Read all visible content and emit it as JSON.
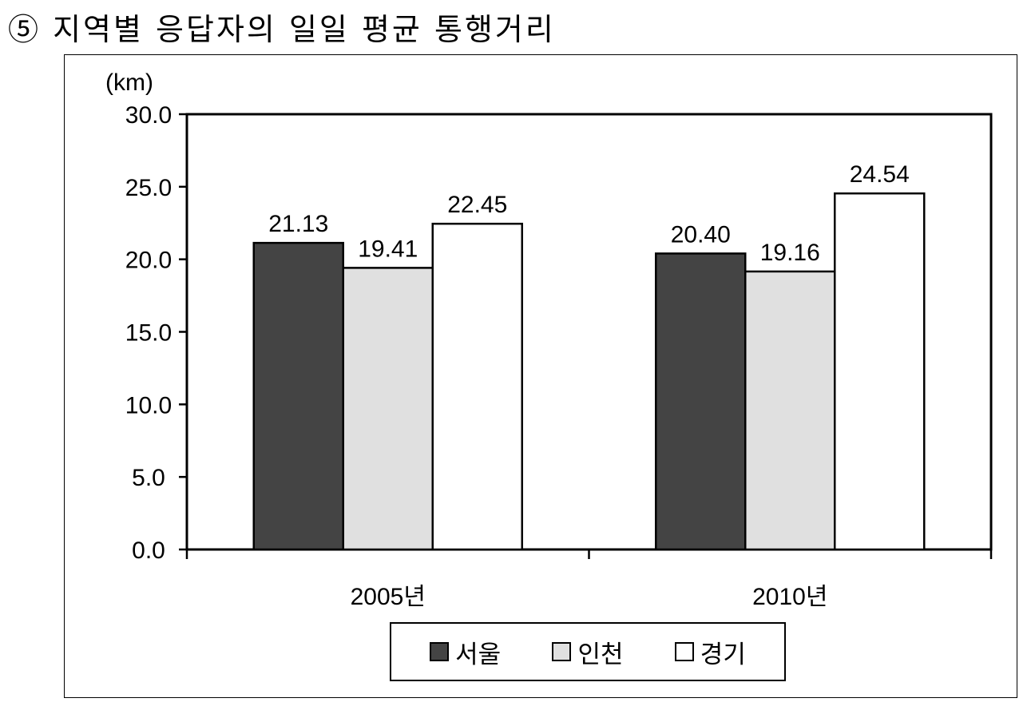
{
  "title": "⑤ 지역별 응답자의 일일 평균 통행거리",
  "chart_data": {
    "type": "bar",
    "unit_label": "(km)",
    "categories": [
      "2005년",
      "2010년"
    ],
    "series": [
      {
        "name": "서울",
        "values": [
          21.13,
          20.4
        ],
        "color": "#444444",
        "labels": [
          "21.13",
          "20.40"
        ]
      },
      {
        "name": "인천",
        "values": [
          19.41,
          19.16
        ],
        "color": "#e0e0e0",
        "labels": [
          "19.41",
          "19.16"
        ]
      },
      {
        "name": "경기",
        "values": [
          22.45,
          24.54
        ],
        "color": "#ffffff",
        "labels": [
          "22.45",
          "24.54"
        ]
      }
    ],
    "ylim": [
      0,
      30
    ],
    "yticks": [
      "0.0",
      "5.0",
      "10.0",
      "15.0",
      "20.0",
      "25.0",
      "30.0"
    ],
    "grid": false,
    "legend_position": "bottom"
  }
}
